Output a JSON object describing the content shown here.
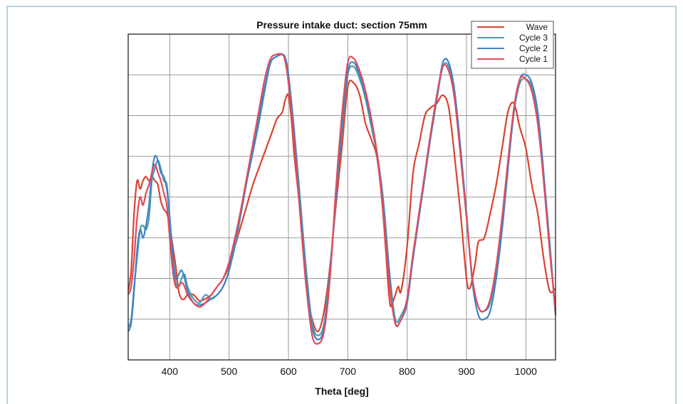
{
  "chart_data": {
    "type": "line",
    "title": "Pressure intake duct: section 75mm",
    "xlabel": "Theta [deg]",
    "ylabel": "",
    "xlim": [
      330,
      1050
    ],
    "ylim": [
      0,
      8
    ],
    "xticks": [
      400,
      500,
      600,
      700,
      800,
      900,
      1000
    ],
    "ygrid": [
      1,
      2,
      3,
      4,
      5,
      6,
      7
    ],
    "grid": true,
    "legend_position": "top-right",
    "series": [
      {
        "name": "Wave",
        "color": "#d9432f",
        "x": [
          330,
          335,
          340,
          345,
          350,
          355,
          360,
          365,
          370,
          375,
          380,
          385,
          390,
          395,
          400,
          405,
          410,
          415,
          420,
          425,
          430,
          440,
          450,
          460,
          470,
          480,
          490,
          500,
          510,
          520,
          530,
          540,
          550,
          560,
          570,
          580,
          585,
          590,
          595,
          600,
          605,
          610,
          620,
          630,
          640,
          650,
          660,
          670,
          680,
          690,
          700,
          710,
          720,
          730,
          740,
          750,
          760,
          770,
          775,
          780,
          785,
          790,
          800,
          810,
          820,
          830,
          840,
          850,
          860,
          870,
          880,
          890,
          900,
          905,
          910,
          915,
          920,
          930,
          940,
          950,
          960,
          970,
          980,
          990,
          1000,
          1010,
          1020,
          1030,
          1040,
          1050
        ],
        "y": [
          1.7,
          2.2,
          3.6,
          4.4,
          4.2,
          4.4,
          4.5,
          4.4,
          4.5,
          4.4,
          4.3,
          3.9,
          3.7,
          3.6,
          3.3,
          2.8,
          2.3,
          1.7,
          1.5,
          1.5,
          1.6,
          1.6,
          1.45,
          1.5,
          1.6,
          1.8,
          2.0,
          2.3,
          2.8,
          3.3,
          3.8,
          4.3,
          4.7,
          5.1,
          5.5,
          5.9,
          6.0,
          6.1,
          6.4,
          6.5,
          5.9,
          5.0,
          3.6,
          1.8,
          1.0,
          0.7,
          1.2,
          2.3,
          3.8,
          5.2,
          6.7,
          6.8,
          6.5,
          5.8,
          5.4,
          4.9,
          3.5,
          1.5,
          1.4,
          1.6,
          1.8,
          1.7,
          2.8,
          4.6,
          5.3,
          6.0,
          6.2,
          6.3,
          6.5,
          6.2,
          5.0,
          3.6,
          2.0,
          1.75,
          2.0,
          2.4,
          2.9,
          3.0,
          3.6,
          4.3,
          5.2,
          6.1,
          6.3,
          5.7,
          5.2,
          4.3,
          3.6,
          2.5,
          1.7,
          1.75
        ]
      },
      {
        "name": "Cycle 3",
        "color": "#4d9bb0",
        "x": [
          330,
          335,
          340,
          345,
          350,
          355,
          360,
          365,
          370,
          375,
          380,
          385,
          390,
          395,
          400,
          405,
          410,
          415,
          420,
          425,
          430,
          440,
          450,
          460,
          470,
          480,
          490,
          500,
          510,
          520,
          530,
          540,
          550,
          560,
          570,
          580,
          590,
          595,
          600,
          610,
          620,
          630,
          640,
          650,
          660,
          670,
          680,
          690,
          700,
          710,
          720,
          730,
          740,
          750,
          760,
          770,
          780,
          790,
          800,
          810,
          820,
          830,
          840,
          850,
          860,
          870,
          880,
          890,
          900,
          910,
          920,
          930,
          940,
          950,
          960,
          970,
          980,
          990,
          1000,
          1010,
          1020,
          1030,
          1040,
          1050
        ],
        "y": [
          0.8,
          1.0,
          1.8,
          2.5,
          3.2,
          3.3,
          3.2,
          3.5,
          4.4,
          4.7,
          4.9,
          4.7,
          4.4,
          4.3,
          3.5,
          2.5,
          1.9,
          1.8,
          2.0,
          2.1,
          1.8,
          1.5,
          1.4,
          1.6,
          1.5,
          1.6,
          1.8,
          2.2,
          2.8,
          3.6,
          4.4,
          5.1,
          5.8,
          6.6,
          7.3,
          7.45,
          7.5,
          7.4,
          7.0,
          5.6,
          3.9,
          2.2,
          0.9,
          0.6,
          0.9,
          2.2,
          4.0,
          5.6,
          7.0,
          7.2,
          6.9,
          6.4,
          5.7,
          5.0,
          3.9,
          2.2,
          1.0,
          1.1,
          1.5,
          2.6,
          3.6,
          4.6,
          5.6,
          6.4,
          7.2,
          7.2,
          6.5,
          5.1,
          3.5,
          2.0,
          1.3,
          1.2,
          1.4,
          2.2,
          3.4,
          4.8,
          6.1,
          6.8,
          6.9,
          6.7,
          6.0,
          4.5,
          2.8,
          1.2
        ]
      },
      {
        "name": "Cycle 2",
        "color": "#3f84c5",
        "x": [
          330,
          335,
          340,
          345,
          350,
          355,
          360,
          365,
          370,
          375,
          380,
          385,
          390,
          395,
          400,
          405,
          410,
          415,
          420,
          425,
          430,
          440,
          450,
          460,
          470,
          480,
          490,
          500,
          510,
          520,
          530,
          540,
          550,
          560,
          570,
          580,
          590,
          595,
          600,
          610,
          620,
          630,
          640,
          650,
          660,
          670,
          680,
          690,
          700,
          710,
          720,
          730,
          740,
          750,
          760,
          770,
          780,
          790,
          800,
          810,
          820,
          830,
          840,
          850,
          860,
          870,
          880,
          890,
          900,
          910,
          920,
          930,
          940,
          950,
          960,
          970,
          980,
          990,
          1000,
          1010,
          1020,
          1030,
          1040,
          1050
        ],
        "y": [
          0.7,
          0.9,
          1.7,
          2.7,
          3.2,
          3.0,
          3.3,
          3.8,
          4.6,
          5.0,
          4.9,
          4.6,
          4.5,
          4.2,
          3.5,
          2.6,
          2.0,
          2.1,
          2.2,
          2.0,
          1.7,
          1.4,
          1.35,
          1.4,
          1.5,
          1.6,
          1.8,
          2.2,
          2.9,
          3.6,
          4.4,
          5.1,
          5.9,
          6.7,
          7.3,
          7.45,
          7.5,
          7.4,
          7.0,
          5.5,
          3.7,
          2.0,
          0.8,
          0.5,
          0.8,
          2.1,
          4.0,
          5.7,
          7.1,
          7.3,
          7.0,
          6.5,
          5.8,
          5.0,
          3.8,
          2.1,
          0.9,
          1.0,
          1.4,
          2.5,
          3.5,
          4.5,
          5.5,
          6.4,
          7.3,
          7.3,
          6.6,
          5.2,
          3.6,
          1.9,
          1.1,
          1.0,
          1.2,
          2.0,
          3.2,
          4.7,
          6.1,
          6.9,
          7.0,
          6.8,
          6.1,
          4.6,
          2.9,
          1.1
        ]
      },
      {
        "name": "Cycle 1",
        "color": "#e14b5c",
        "x": [
          330,
          335,
          340,
          345,
          350,
          355,
          360,
          365,
          370,
          375,
          380,
          385,
          390,
          395,
          400,
          405,
          410,
          415,
          420,
          425,
          430,
          440,
          450,
          460,
          470,
          480,
          490,
          500,
          510,
          520,
          530,
          540,
          550,
          560,
          570,
          580,
          590,
          595,
          600,
          610,
          620,
          630,
          640,
          650,
          660,
          670,
          680,
          690,
          700,
          710,
          720,
          730,
          740,
          750,
          760,
          770,
          780,
          790,
          800,
          810,
          820,
          830,
          840,
          850,
          860,
          870,
          880,
          890,
          900,
          910,
          920,
          930,
          940,
          950,
          960,
          970,
          980,
          990,
          1000,
          1010,
          1020,
          1030,
          1040,
          1050
        ],
        "y": [
          1.6,
          1.8,
          2.5,
          3.5,
          4.0,
          3.8,
          4.1,
          4.3,
          4.6,
          4.8,
          4.6,
          4.4,
          4.1,
          3.8,
          3.0,
          2.2,
          1.8,
          1.8,
          1.9,
          1.8,
          1.6,
          1.4,
          1.3,
          1.4,
          1.6,
          1.8,
          2.0,
          2.4,
          3.0,
          3.7,
          4.5,
          5.3,
          6.1,
          6.9,
          7.4,
          7.5,
          7.5,
          7.3,
          6.8,
          5.3,
          3.5,
          1.8,
          0.6,
          0.4,
          0.7,
          2.0,
          4.2,
          6.0,
          7.3,
          7.4,
          7.1,
          6.6,
          5.9,
          5.0,
          3.6,
          1.9,
          0.9,
          1.0,
          1.5,
          2.6,
          3.6,
          4.6,
          5.6,
          6.5,
          7.2,
          7.1,
          6.4,
          5.0,
          3.5,
          2.0,
          1.3,
          1.2,
          1.5,
          2.3,
          3.5,
          4.9,
          6.2,
          6.9,
          6.9,
          6.6,
          5.8,
          4.4,
          2.7,
          1.2
        ]
      }
    ]
  }
}
